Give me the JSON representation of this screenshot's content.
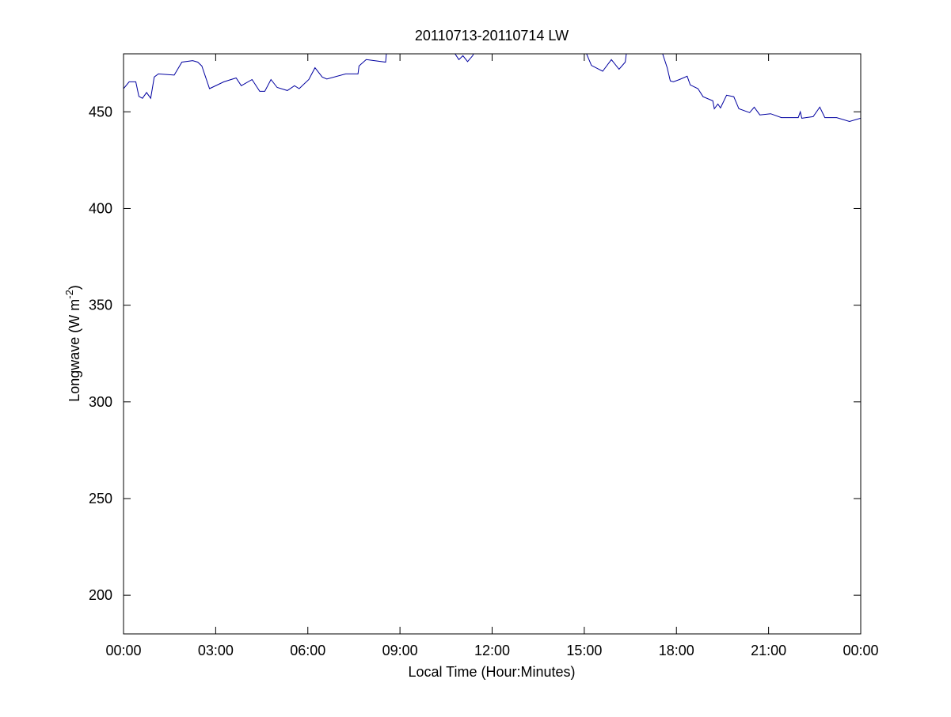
{
  "chart_data": {
    "type": "line",
    "title": "20110713-20110714 LW",
    "xlabel": "Local Time (Hour:Minutes)",
    "ylabel_main": "Longwave (W m",
    "ylabel_sup": "-2",
    "ylabel_close": ")",
    "xlim": [
      "00:00",
      "24:00"
    ],
    "ylim": [
      180,
      480
    ],
    "x_ticks": [
      {
        "t": "00:00",
        "label": "00:00"
      },
      {
        "t": "03:00",
        "label": "03:00"
      },
      {
        "t": "06:00",
        "label": "06:00"
      },
      {
        "t": "09:00",
        "label": "09:00"
      },
      {
        "t": "12:00",
        "label": "12:00"
      },
      {
        "t": "15:00",
        "label": "15:00"
      },
      {
        "t": "18:00",
        "label": "18:00"
      },
      {
        "t": "21:00",
        "label": "21:00"
      },
      {
        "t": "24:00",
        "label": "00:00"
      }
    ],
    "y_ticks": [
      200,
      250,
      300,
      350,
      400,
      450
    ],
    "grid": false,
    "line_color": "#0000a0",
    "series": [
      {
        "x": [
          "00:00",
          "00:11",
          "00:24",
          "00:30",
          "00:37",
          "00:45",
          "00:53",
          "01:00",
          "01:08",
          "01:39",
          "01:54",
          "02:15",
          "02:25",
          "02:33",
          "02:48",
          "03:16",
          "03:40",
          "03:50",
          "04:11",
          "04:26",
          "04:36",
          "04:48",
          "05:00",
          "05:20",
          "05:34",
          "05:43",
          "06:02",
          "06:14",
          "06:28",
          "06:37",
          "07:14",
          "07:38",
          "07:40",
          "07:54",
          "08:32",
          "08:34",
          "09:10",
          "10:00",
          "10:40",
          "10:55",
          "11:03",
          "11:12",
          "11:22",
          "11:30",
          "12:30",
          "14:00",
          "14:58",
          "15:14",
          "15:36",
          "15:53",
          "16:08",
          "16:20",
          "16:24",
          "16:45",
          "17:00",
          "17:28",
          "17:42",
          "17:48",
          "17:54",
          "18:06",
          "18:21",
          "18:27",
          "18:42",
          "18:52",
          "19:11",
          "19:14",
          "19:21",
          "19:26",
          "19:38",
          "19:52",
          "20:02",
          "20:23",
          "20:32",
          "20:43",
          "21:04",
          "21:25",
          "21:58",
          "22:02",
          "22:05",
          "22:27",
          "22:40",
          "22:50",
          "23:13",
          "23:38",
          "24:00"
        ],
        "y": [
          462,
          465.5,
          465.5,
          458,
          457,
          460,
          457,
          468,
          469.6,
          469,
          475.7,
          476.5,
          475.7,
          473.7,
          462,
          465.5,
          467.5,
          463.5,
          466.7,
          460.6,
          460.6,
          466.7,
          462.6,
          461,
          463.5,
          462,
          466.7,
          472.8,
          468,
          467,
          469.6,
          469.6,
          473.7,
          477,
          475.7,
          482,
          486,
          488,
          483,
          477,
          479,
          476,
          479,
          484,
          490,
          490,
          484,
          474,
          471,
          477,
          472,
          475.7,
          484,
          490,
          490,
          484,
          472.8,
          466,
          465.5,
          466.7,
          468.4,
          463.9,
          462,
          457.8,
          455.7,
          451.6,
          454,
          452,
          458.6,
          457.8,
          451.6,
          449.6,
          452.4,
          448.4,
          449,
          447,
          447,
          450,
          446.7,
          447.5,
          452.4,
          447,
          447,
          445,
          446.7
        ]
      }
    ]
  }
}
